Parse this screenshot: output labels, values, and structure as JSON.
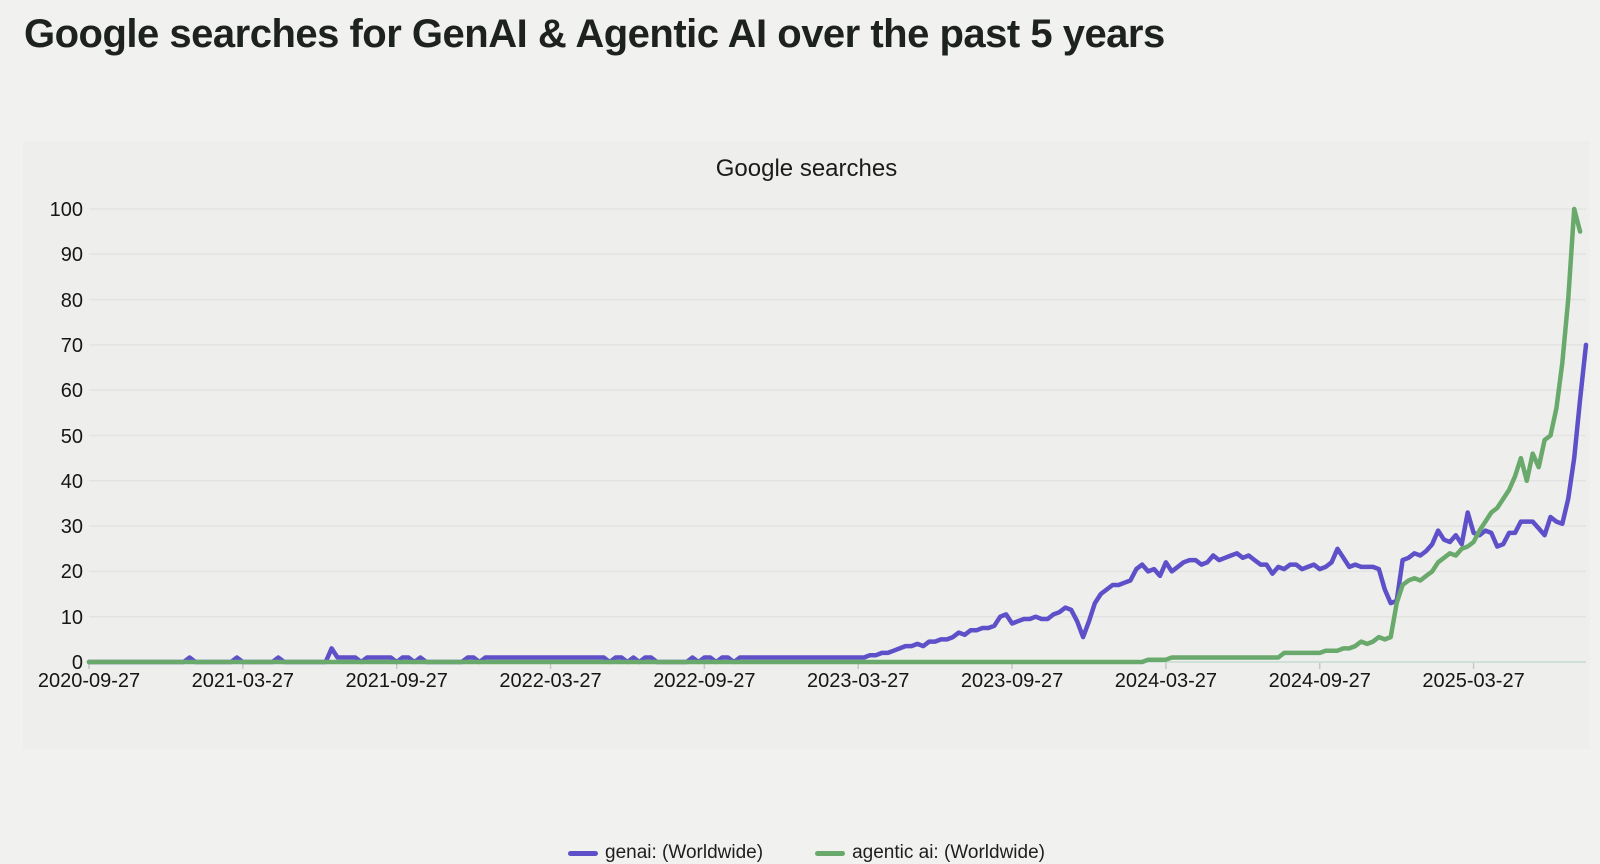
{
  "page_title": "Google searches for GenAI & Agentic AI over the past 5 years",
  "chart": {
    "title": "Google searches",
    "legend": [
      {
        "label": "genai: (Worldwide)",
        "color": "#5e50c8"
      },
      {
        "label": "agentic ai: (Worldwide)",
        "color": "#69a96c"
      }
    ]
  },
  "colors": {
    "page_background": "#f1f1ef",
    "panel_background": "#eeeeec",
    "title_text": "#1d221e",
    "axis_text": "#161616",
    "gridline": "#e3e3e1",
    "tick": "#c7c7c5",
    "zero_axis_line": "#cfe0d8",
    "genai_line": "#5e50c8",
    "agentic_line": "#69a96c"
  },
  "chart_data": {
    "type": "line",
    "title": "Google searches",
    "xlabel": "",
    "ylabel": "",
    "ylim": [
      0,
      100
    ],
    "grid": "horizontal",
    "legend_position": "bottom-center",
    "x_unit": "weekly samples starting 2020-09-27",
    "n_points": 254,
    "y_ticks": [
      0,
      10,
      20,
      30,
      40,
      50,
      60,
      70,
      80,
      90,
      100
    ],
    "x_tick_labels": [
      "2020-09-27",
      "2021-03-27",
      "2021-09-27",
      "2022-03-27",
      "2022-09-27",
      "2023-03-27",
      "2023-09-27",
      "2024-03-27",
      "2024-09-27",
      "2025-03-27"
    ],
    "x_tick_indices": [
      0,
      26,
      52,
      78,
      104,
      130,
      156,
      182,
      208,
      234
    ],
    "series": [
      {
        "name": "genai: (Worldwide)",
        "color": "#5e50c8",
        "values": [
          0,
          0,
          0,
          0,
          0,
          0,
          0,
          0,
          0,
          0,
          0,
          0,
          0,
          0,
          0,
          0,
          0,
          1,
          0,
          0,
          0,
          0,
          0,
          0,
          0,
          1,
          0,
          0,
          0,
          0,
          0,
          0,
          1,
          0,
          0,
          0,
          0,
          0,
          0,
          0,
          0,
          3,
          1,
          1,
          1,
          1,
          0,
          1,
          1,
          1,
          1,
          1,
          0,
          1,
          1,
          0,
          1,
          0,
          0,
          0,
          0,
          0,
          0,
          0,
          1,
          1,
          0,
          1,
          1,
          1,
          1,
          1,
          1,
          1,
          1,
          1,
          1,
          1,
          1,
          1,
          1,
          1,
          1,
          1,
          1,
          1,
          1,
          1,
          0,
          1,
          1,
          0,
          1,
          0,
          1,
          1,
          0,
          0,
          0,
          0,
          0,
          0,
          1,
          0,
          1,
          1,
          0,
          1,
          1,
          0,
          1,
          1,
          1,
          1,
          1,
          1,
          1,
          1,
          1,
          1,
          1,
          1,
          1,
          1,
          1,
          1,
          1,
          1,
          1,
          1,
          1,
          1,
          1.5,
          1.5,
          2,
          2,
          2.5,
          3,
          3.5,
          3.5,
          4,
          3.5,
          4.5,
          4.5,
          5,
          5,
          5.5,
          6.5,
          6,
          7,
          7,
          7.5,
          7.5,
          8,
          10,
          10.5,
          8.5,
          9,
          9.5,
          9.5,
          10,
          9.5,
          9.5,
          10.5,
          11,
          12,
          11.5,
          9,
          5.5,
          9,
          13,
          15,
          16,
          17,
          17,
          17.5,
          18,
          20.5,
          21.5,
          20,
          20.5,
          19,
          22,
          20,
          21,
          22,
          22.5,
          22.5,
          21.5,
          22,
          23.5,
          22.5,
          23,
          23.5,
          24,
          23,
          23.5,
          22.5,
          21.5,
          21.5,
          19.5,
          21,
          20.5,
          21.5,
          21.5,
          20.5,
          21,
          21.5,
          20.5,
          21,
          22,
          25,
          23,
          21,
          21.5,
          21,
          21,
          21,
          20.5,
          16,
          13,
          13.5,
          22.5,
          23,
          24,
          23.5,
          24.5,
          26,
          29,
          27,
          26.5,
          28,
          26,
          33,
          28.5,
          28,
          29,
          28.5,
          25.5,
          26,
          28.5,
          28.5,
          31,
          31,
          31,
          29.5,
          28,
          32,
          31,
          30.5,
          36,
          45,
          58,
          70
        ]
      },
      {
        "name": "agentic ai: (Worldwide)",
        "color": "#69a96c",
        "values": [
          0,
          0,
          0,
          0,
          0,
          0,
          0,
          0,
          0,
          0,
          0,
          0,
          0,
          0,
          0,
          0,
          0,
          0,
          0,
          0,
          0,
          0,
          0,
          0,
          0,
          0,
          0,
          0,
          0,
          0,
          0,
          0,
          0,
          0,
          0,
          0,
          0,
          0,
          0,
          0,
          0,
          0,
          0,
          0,
          0,
          0,
          0,
          0,
          0,
          0,
          0,
          0,
          0,
          0,
          0,
          0,
          0,
          0,
          0,
          0,
          0,
          0,
          0,
          0,
          0,
          0,
          0,
          0,
          0,
          0,
          0,
          0,
          0,
          0,
          0,
          0,
          0,
          0,
          0,
          0,
          0,
          0,
          0,
          0,
          0,
          0,
          0,
          0,
          0,
          0,
          0,
          0,
          0,
          0,
          0,
          0,
          0,
          0,
          0,
          0,
          0,
          0,
          0,
          0,
          0,
          0,
          0,
          0,
          0,
          0,
          0,
          0,
          0,
          0,
          0,
          0,
          0,
          0,
          0,
          0,
          0,
          0,
          0,
          0,
          0,
          0,
          0,
          0,
          0,
          0,
          0,
          0,
          0,
          0,
          0,
          0,
          0,
          0,
          0,
          0,
          0,
          0,
          0,
          0,
          0,
          0,
          0,
          0,
          0,
          0,
          0,
          0,
          0,
          0,
          0,
          0,
          0,
          0,
          0,
          0,
          0,
          0,
          0,
          0,
          0,
          0,
          0,
          0,
          0,
          0,
          0,
          0,
          0,
          0,
          0,
          0,
          0,
          0,
          0,
          0.5,
          0.5,
          0.5,
          0.5,
          1,
          1,
          1,
          1,
          1,
          1,
          1,
          1,
          1,
          1,
          1,
          1,
          1,
          1,
          1,
          1,
          1,
          1,
          1,
          2,
          2,
          2,
          2,
          2,
          2,
          2,
          2.5,
          2.5,
          2.5,
          3,
          3,
          3.5,
          4.5,
          4,
          4.5,
          5.5,
          5,
          5.5,
          13,
          17,
          18,
          18.5,
          18,
          19,
          20,
          22,
          23,
          24,
          23.5,
          25,
          25.5,
          26.5,
          29,
          31,
          33,
          34,
          36,
          38,
          41,
          45,
          40,
          46,
          43,
          49,
          50,
          56,
          66,
          80,
          100,
          95
        ]
      }
    ]
  }
}
